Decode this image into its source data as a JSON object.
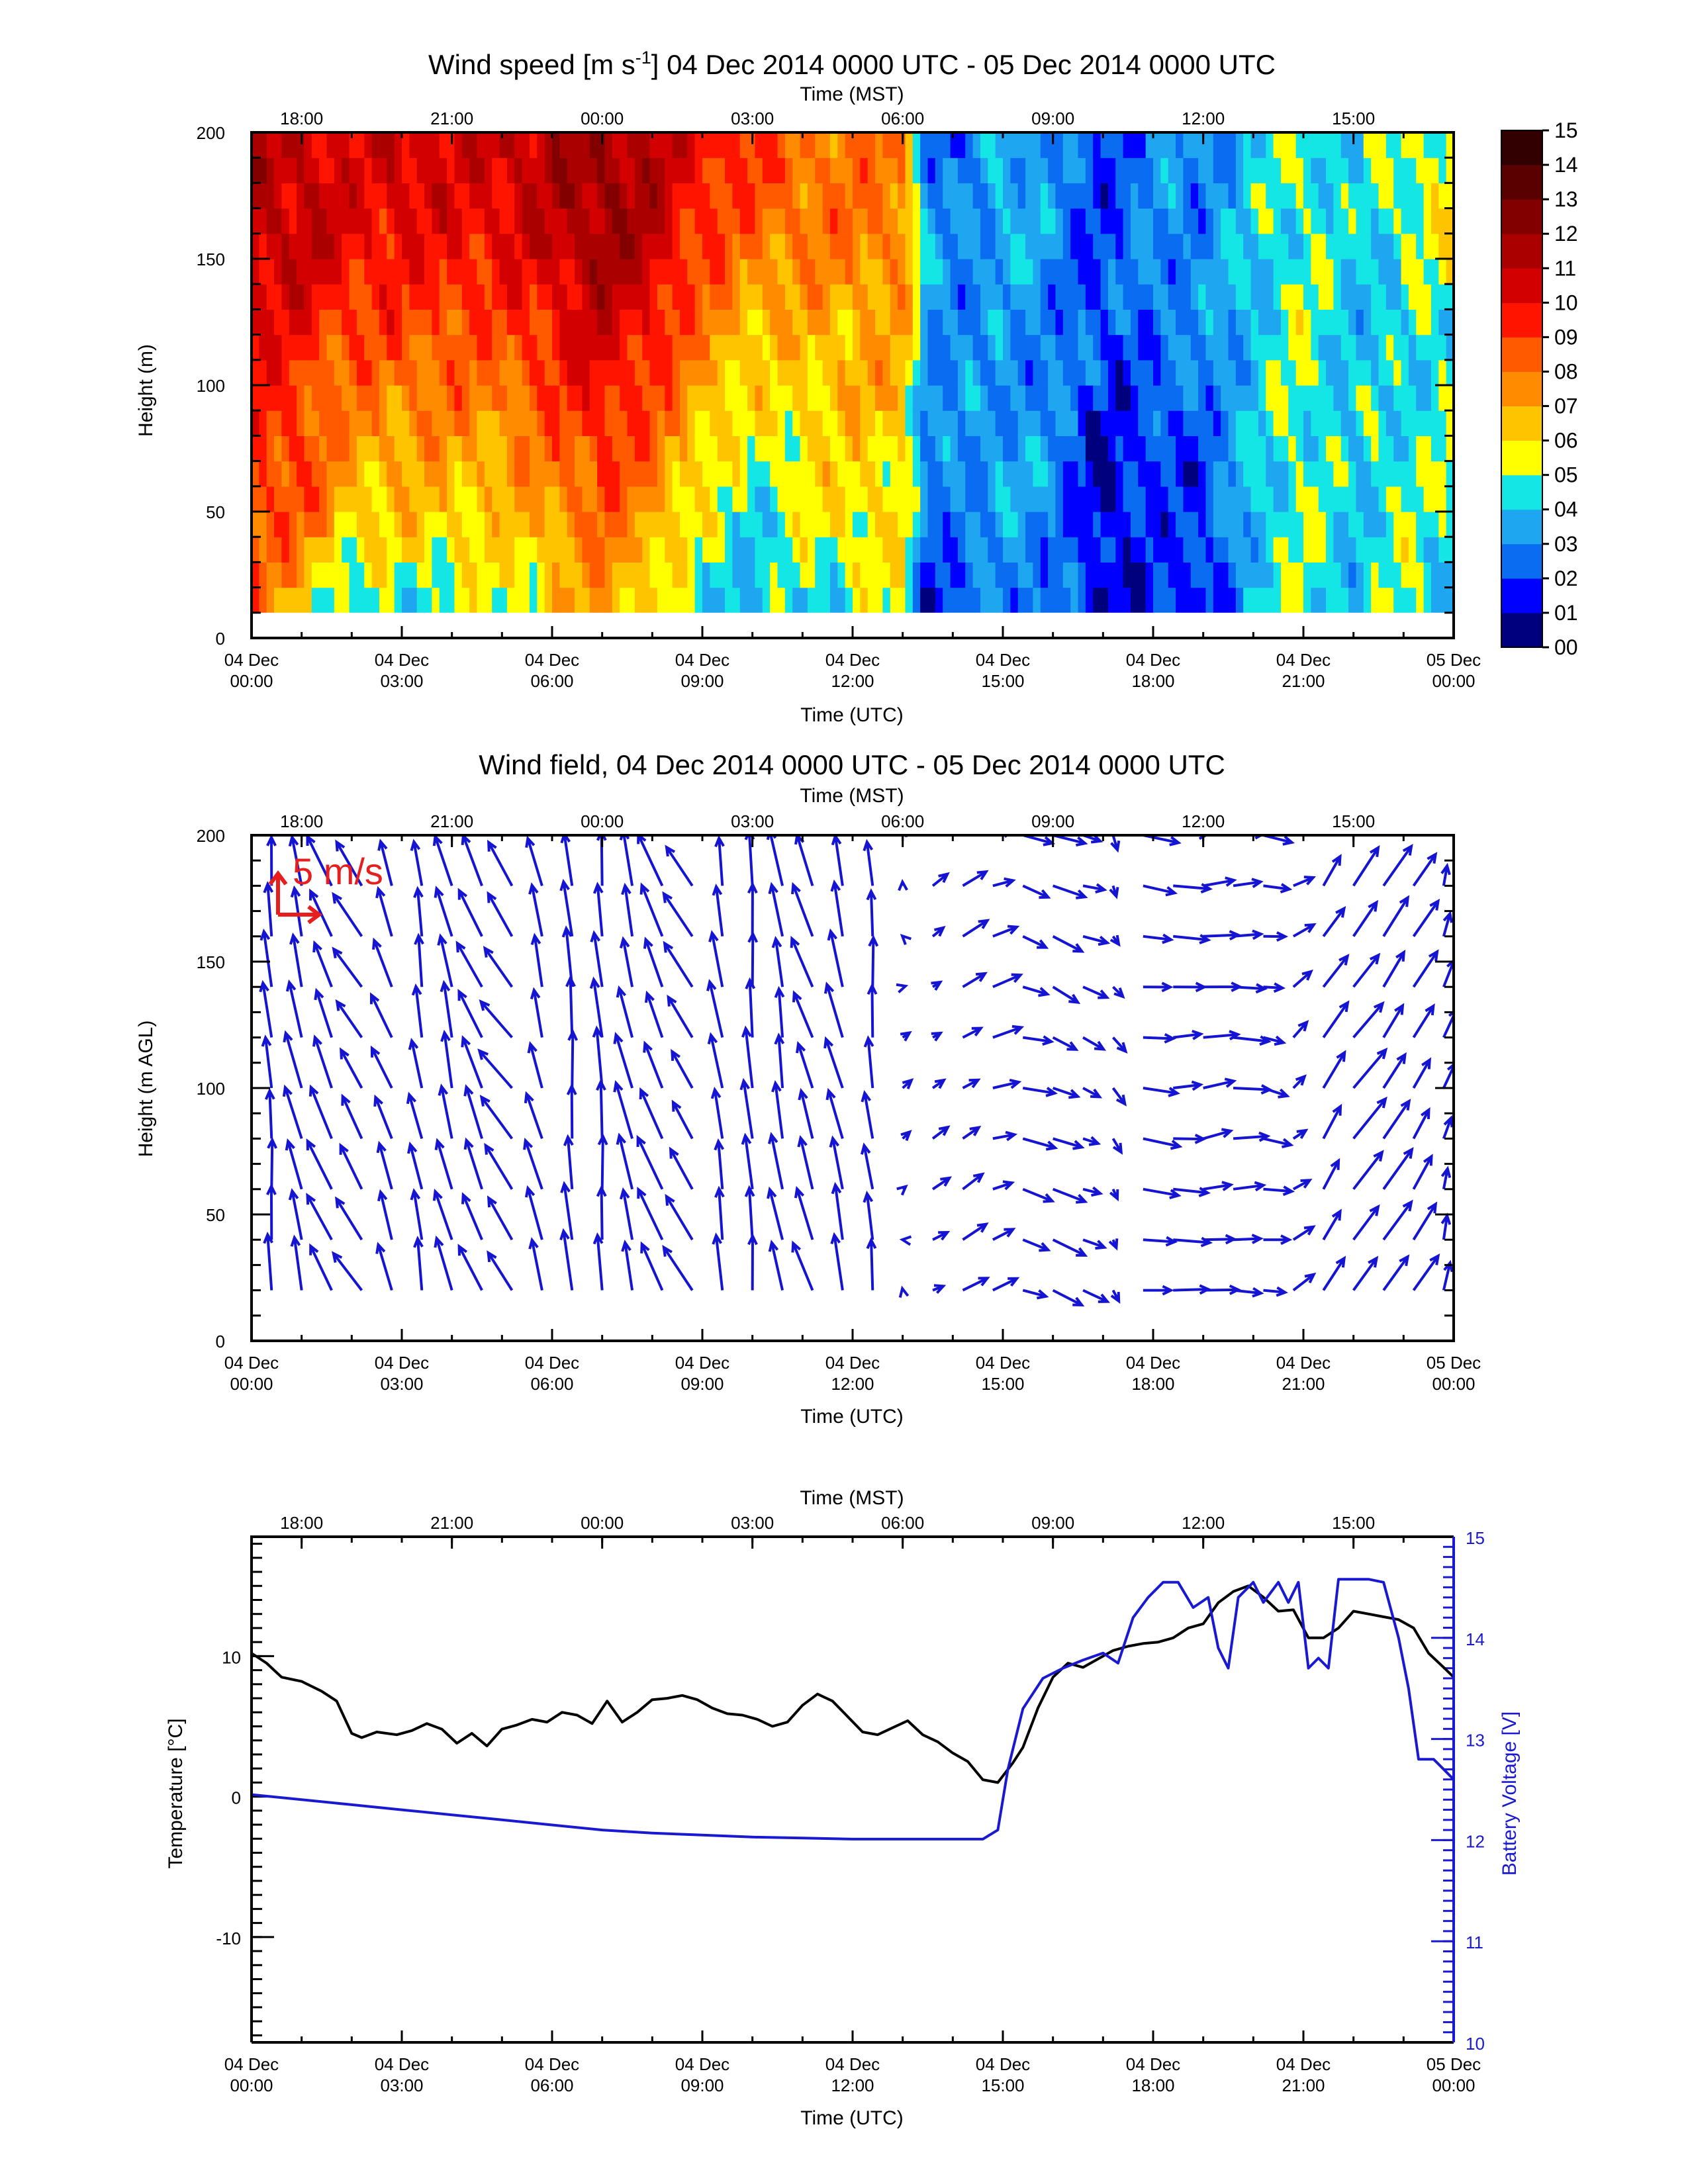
{
  "chart_data": [
    {
      "type": "heatmap",
      "title_prefix": "Wind speed [m s",
      "title_sup": "-1",
      "title_suffix": "] 04 Dec 2014 0000 UTC - 05 Dec 2014 0000 UTC",
      "xlabel": "Time (UTC)",
      "x2label": "Time (MST)",
      "ylabel": "Height (m)",
      "xlim": [
        0,
        24
      ],
      "ylim": [
        0,
        200
      ],
      "yticks": [
        0,
        50,
        100,
        150,
        200
      ],
      "xticks_bottom": [
        {
          "x": 0,
          "line1": "04 Dec",
          "line2": "00:00"
        },
        {
          "x": 3,
          "line1": "04 Dec",
          "line2": "03:00"
        },
        {
          "x": 6,
          "line1": "04 Dec",
          "line2": "06:00"
        },
        {
          "x": 9,
          "line1": "04 Dec",
          "line2": "09:00"
        },
        {
          "x": 12,
          "line1": "04 Dec",
          "line2": "12:00"
        },
        {
          "x": 15,
          "line1": "04 Dec",
          "line2": "15:00"
        },
        {
          "x": 18,
          "line1": "04 Dec",
          "line2": "18:00"
        },
        {
          "x": 21,
          "line1": "04 Dec",
          "line2": "21:00"
        },
        {
          "x": 24,
          "line1": "05 Dec",
          "line2": "00:00"
        }
      ],
      "xticks_top": [
        {
          "x": 1,
          "label": "18:00"
        },
        {
          "x": 4,
          "label": "21:00"
        },
        {
          "x": 7,
          "label": "00:00"
        },
        {
          "x": 10,
          "label": "03:00"
        },
        {
          "x": 13,
          "label": "06:00"
        },
        {
          "x": 16,
          "label": "09:00"
        },
        {
          "x": 19,
          "label": "12:00"
        },
        {
          "x": 22,
          "label": "15:00"
        }
      ],
      "colorbar": {
        "labels": [
          "00",
          "01",
          "02",
          "03",
          "04",
          "05",
          "06",
          "07",
          "08",
          "09",
          "10",
          "11",
          "12",
          "13",
          "14",
          "15"
        ],
        "colors": [
          "#00007f",
          "#0000ff",
          "#0a6cf0",
          "#1ea6f0",
          "#14e6e6",
          "#ffff00",
          "#ffc400",
          "#ff8c00",
          "#ff5a00",
          "#ff1400",
          "#d20000",
          "#aa0000",
          "#820000",
          "#5a0000",
          "#320000"
        ]
      },
      "time_samples": [
        0,
        1,
        2,
        3,
        4,
        5,
        6,
        7,
        8,
        9,
        10,
        11,
        12,
        13,
        13.5,
        14,
        15,
        16,
        17,
        18,
        19,
        20,
        21,
        22,
        23,
        24
      ],
      "height_levels": [
        10,
        40,
        70,
        100,
        130,
        160,
        190
      ],
      "speed_at_levels": [
        [
          8,
          9,
          9,
          10,
          10,
          11,
          11
        ],
        [
          6,
          8,
          9,
          9,
          10,
          11,
          11
        ],
        [
          4,
          6,
          7,
          8,
          9,
          10,
          10
        ],
        [
          4,
          6,
          7,
          8,
          9,
          10,
          11
        ],
        [
          5,
          6,
          7,
          8,
          9,
          10,
          10
        ],
        [
          5,
          6,
          7,
          8,
          9,
          10,
          11
        ],
        [
          6,
          7,
          8,
          9,
          10,
          11,
          11
        ],
        [
          7,
          8,
          9,
          10,
          11,
          12,
          12
        ],
        [
          6,
          7,
          8,
          9,
          10,
          11,
          11
        ],
        [
          4,
          5,
          6,
          7,
          8,
          9,
          10
        ],
        [
          4,
          4,
          5,
          6,
          7,
          8,
          9
        ],
        [
          4,
          5,
          6,
          6,
          7,
          8,
          8
        ],
        [
          5,
          6,
          6,
          7,
          7,
          8,
          8
        ],
        [
          5,
          6,
          6,
          7,
          7,
          8,
          8
        ],
        [
          1,
          2,
          3,
          3,
          4,
          3,
          3
        ],
        [
          2,
          3,
          3,
          3,
          3,
          3,
          2
        ],
        [
          3,
          3,
          4,
          3,
          3,
          4,
          4
        ],
        [
          3,
          3,
          3,
          3,
          3,
          3,
          3
        ],
        [
          1,
          1,
          1,
          2,
          2,
          2,
          2
        ],
        [
          2,
          2,
          2,
          2,
          3,
          3,
          3
        ],
        [
          1,
          2,
          2,
          3,
          3,
          3,
          3
        ],
        [
          4,
          4,
          4,
          4,
          4,
          4,
          4
        ],
        [
          5,
          5,
          5,
          5,
          5,
          5,
          5
        ],
        [
          4,
          4,
          4,
          4,
          4,
          4,
          4
        ],
        [
          5,
          5,
          5,
          4,
          4,
          5,
          5
        ],
        [
          4,
          4,
          5,
          5,
          5,
          6,
          6
        ]
      ]
    },
    {
      "type": "quiver",
      "title": "Wind field, 04 Dec 2014 0000 UTC - 05 Dec 2014 0000 UTC",
      "xlabel": "Time (UTC)",
      "x2label": "Time (MST)",
      "ylabel": "Height (m AGL)",
      "xlim": [
        0,
        24
      ],
      "ylim": [
        0,
        200
      ],
      "yticks": [
        0,
        50,
        100,
        150,
        200
      ],
      "reference_vector_label": "5 m/s",
      "reference_vector_ms": 5,
      "arrow_color": "#1414d2",
      "reference_color": "#e61e1e",
      "profile_times": [
        0.4,
        1.0,
        1.6,
        2.2,
        2.8,
        3.4,
        4.0,
        4.6,
        5.2,
        5.8,
        6.4,
        7.0,
        7.6,
        8.2,
        8.8,
        9.4,
        10.0,
        10.6,
        11.2,
        11.8,
        12.4,
        13.0,
        13.6,
        14.2,
        14.8,
        15.4,
        16.0,
        16.6,
        17.2,
        17.8,
        18.4,
        19.0,
        19.6,
        20.2,
        20.8,
        21.4,
        22.0,
        22.6,
        23.2,
        23.8
      ],
      "height_levels": [
        20,
        40,
        60,
        80,
        100,
        120,
        140,
        160,
        180,
        200
      ],
      "u_ms": [
        -0.5,
        -1.5,
        -2.5,
        -3.0,
        -2.0,
        -1.0,
        -1.5,
        -2.5,
        -3.5,
        -1.5,
        -0.5,
        -0.5,
        -1.5,
        -2.5,
        -3.0,
        -1.0,
        -0.5,
        -1.0,
        -2.0,
        -1.5,
        -0.5,
        0.5,
        1.5,
        2.5,
        3.0,
        3.5,
        3.5,
        2.5,
        1.0,
        4.0,
        4.0,
        4.0,
        4.0,
        3.0,
        2.0,
        2.5,
        3.5,
        3.0,
        2.5,
        1.0
      ],
      "v_ms": [
        6.5,
        6.5,
        6.0,
        5.0,
        5.5,
        6.0,
        6.5,
        6.0,
        5.0,
        6.0,
        7.0,
        7.0,
        6.5,
        6.0,
        5.0,
        6.5,
        7.0,
        6.5,
        6.0,
        6.5,
        6.0,
        0.5,
        1.0,
        1.5,
        1.0,
        -1.0,
        -1.5,
        -1.0,
        -1.5,
        -0.5,
        0.0,
        0.5,
        0.0,
        -0.5,
        1.5,
        4.0,
        4.5,
        4.5,
        4.0,
        3.0
      ]
    },
    {
      "type": "line",
      "xlabel": "Time (UTC)",
      "x2label": "Time (MST)",
      "ylabel": "Temperature [°C]",
      "y2label": "Battery Voltage [V]",
      "xlim": [
        0,
        24
      ],
      "ylim": [
        -17.5,
        18.5
      ],
      "y2lim": [
        10,
        15
      ],
      "yticks": [
        -10,
        0,
        10
      ],
      "y2ticks": [
        10,
        11,
        12,
        13,
        14,
        15
      ],
      "series": [
        {
          "axis": "left",
          "color": "#000000",
          "x": [
            0,
            0.3,
            0.6,
            1.0,
            1.4,
            1.7,
            2.0,
            2.2,
            2.5,
            2.9,
            3.2,
            3.5,
            3.8,
            4.1,
            4.4,
            4.7,
            5.0,
            5.3,
            5.6,
            5.9,
            6.2,
            6.5,
            6.8,
            7.1,
            7.4,
            7.7,
            8.0,
            8.3,
            8.6,
            8.9,
            9.2,
            9.5,
            9.8,
            10.1,
            10.4,
            10.7,
            11.0,
            11.3,
            11.6,
            11.9,
            12.2,
            12.5,
            12.8,
            13.1,
            13.4,
            13.7,
            14.0,
            14.3,
            14.6,
            14.9,
            15.2,
            15.4,
            15.7,
            16.0,
            16.3,
            16.6,
            16.9,
            17.2,
            17.5,
            17.8,
            18.1,
            18.4,
            18.7,
            19.0,
            19.3,
            19.6,
            19.9,
            20.2,
            20.5,
            20.8,
            21.1,
            21.4,
            21.7,
            22.0,
            22.3,
            22.6,
            22.9,
            23.2,
            23.5,
            23.8,
            24.0
          ],
          "y": [
            10.2,
            9.5,
            8.5,
            8.2,
            7.5,
            6.8,
            4.5,
            4.2,
            4.6,
            4.4,
            4.7,
            5.2,
            4.8,
            3.8,
            4.5,
            3.6,
            4.8,
            5.1,
            5.5,
            5.3,
            6.0,
            5.8,
            5.2,
            6.8,
            5.3,
            6.0,
            6.9,
            7.0,
            7.2,
            6.9,
            6.3,
            5.9,
            5.8,
            5.5,
            5.0,
            5.3,
            6.5,
            7.3,
            6.8,
            5.7,
            4.6,
            4.4,
            4.9,
            5.4,
            4.4,
            3.9,
            3.1,
            2.5,
            1.2,
            1.0,
            2.4,
            3.5,
            6.3,
            8.5,
            9.5,
            9.2,
            9.8,
            10.4,
            10.7,
            10.9,
            11.0,
            11.3,
            12.0,
            12.3,
            13.8,
            14.6,
            15.0,
            14.2,
            13.2,
            13.3,
            11.3,
            11.3,
            12.0,
            13.2,
            13.0,
            12.8,
            12.6,
            12.0,
            10.2,
            9.2,
            8.5
          ]
        },
        {
          "axis": "right",
          "color": "#1919d2",
          "x": [
            0,
            1,
            2,
            3,
            4,
            5,
            6,
            7,
            8,
            9,
            10,
            11,
            12,
            13,
            14,
            14.6,
            14.9,
            15.1,
            15.4,
            15.8,
            16.2,
            16.6,
            17.0,
            17.3,
            17.6,
            17.9,
            18.2,
            18.5,
            18.8,
            19.1,
            19.3,
            19.5,
            19.7,
            20.0,
            20.2,
            20.5,
            20.7,
            20.9,
            21.1,
            21.3,
            21.5,
            21.7,
            22.0,
            22.3,
            22.6,
            22.9,
            23.1,
            23.3,
            23.6,
            23.8,
            24.0
          ],
          "y": [
            12.45,
            12.4,
            12.35,
            12.3,
            12.25,
            12.2,
            12.15,
            12.1,
            12.07,
            12.05,
            12.03,
            12.02,
            12.01,
            12.01,
            12.01,
            12.01,
            12.1,
            12.7,
            13.3,
            13.6,
            13.7,
            13.78,
            13.85,
            13.75,
            14.2,
            14.4,
            14.55,
            14.55,
            14.3,
            14.4,
            13.9,
            13.7,
            14.4,
            14.55,
            14.35,
            14.55,
            14.35,
            14.55,
            13.7,
            13.8,
            13.7,
            14.58,
            14.58,
            14.58,
            14.55,
            14.0,
            13.5,
            12.8,
            12.8,
            12.7,
            12.6
          ]
        }
      ]
    }
  ]
}
